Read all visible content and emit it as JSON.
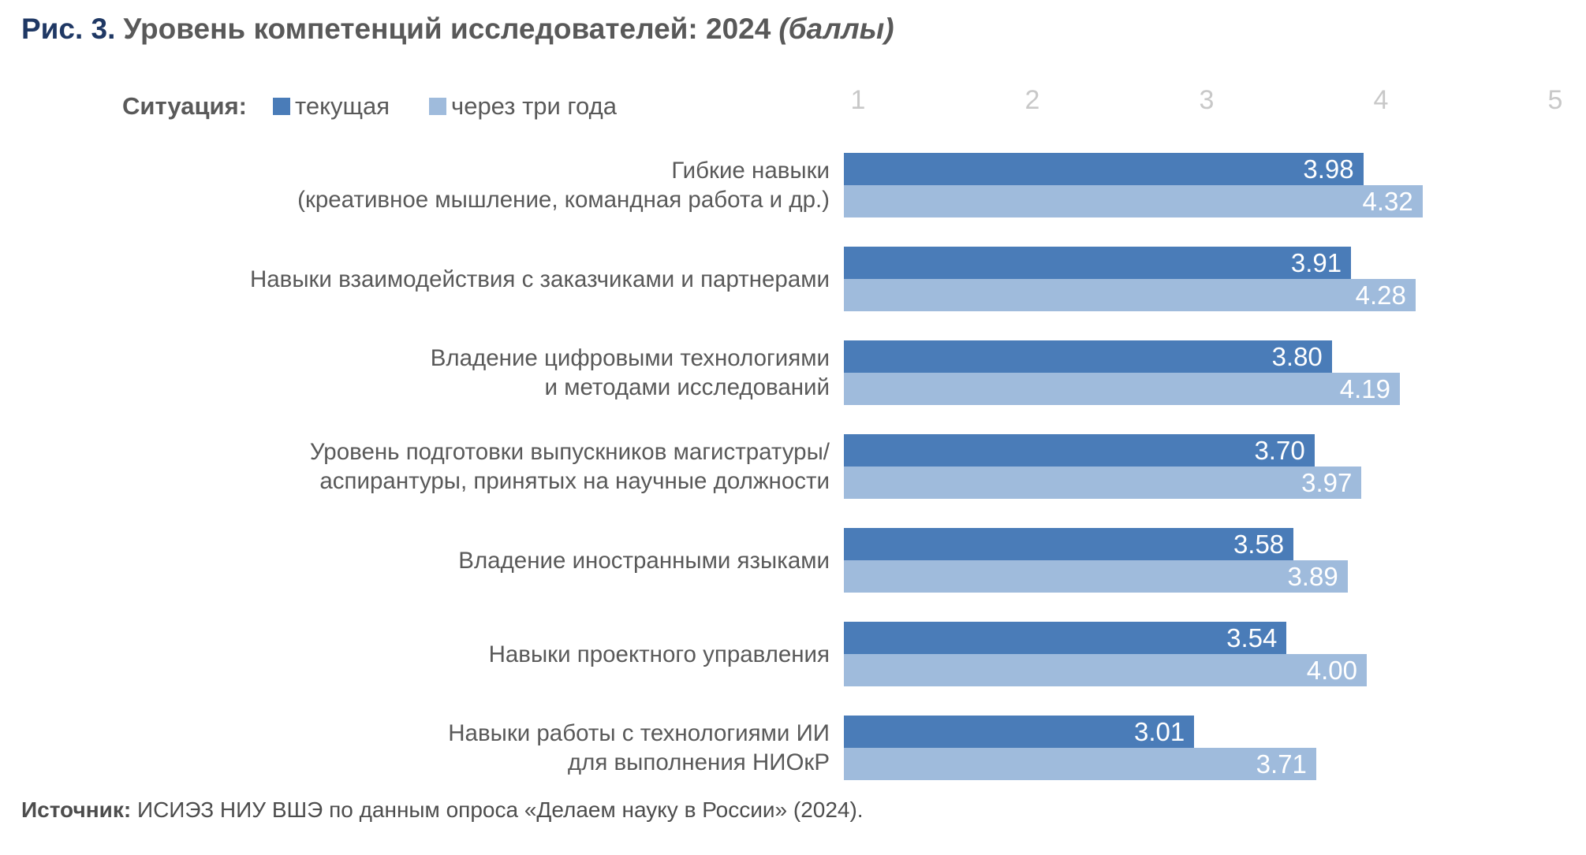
{
  "title": {
    "prefix": "Рис. 3.",
    "main": "Уровень компетенций исследователей: 2024",
    "unit": "(баллы)"
  },
  "legend": {
    "label": "Ситуация:",
    "current_label": "текущая",
    "future_label": "через три года"
  },
  "colors": {
    "current": "#4A7CB8",
    "future": "#9FBBDC",
    "title_accent": "#1F3864",
    "text_gray": "#595959",
    "tick_gray": "#C8C8C8"
  },
  "axis": {
    "ticks": [
      "1",
      "2",
      "3",
      "4",
      "5"
    ],
    "min": 1,
    "max": 5
  },
  "chart_data": {
    "type": "bar",
    "orientation": "horizontal",
    "title": "Рис. 3. Уровень компетенций исследователей: 2024 (баллы)",
    "xlabel": "баллы",
    "ylabel": "",
    "xlim": [
      1,
      5
    ],
    "grid": false,
    "legend_position": "top-left",
    "categories": [
      "Гибкие навыки (креативное мышление, командная работа и др.)",
      "Навыки взаимодействия с заказчиками и партнерами",
      "Владение цифровыми технологиями и методами исследований",
      "Уровень подготовки выпускников магистратуры/ аспирантуры, принятых на научные должности",
      "Владение иностранными языками",
      "Навыки проектного управления",
      "Навыки работы с технологиями ИИ для выполнения НИОкР"
    ],
    "series": [
      {
        "name": "текущая",
        "values": [
          3.98,
          3.91,
          3.8,
          3.7,
          3.58,
          3.54,
          3.01
        ]
      },
      {
        "name": "через три года",
        "values": [
          4.32,
          4.28,
          4.19,
          3.97,
          3.89,
          4.0,
          3.71
        ]
      }
    ]
  },
  "rows": [
    {
      "label1": "Гибкие навыки",
      "label2": "(креативное мышление, командная работа и др.)",
      "current": "3.98",
      "future": "4.32"
    },
    {
      "label1": "Навыки взаимодействия с заказчиками и партнерами",
      "label2": "",
      "current": "3.91",
      "future": "4.28"
    },
    {
      "label1": "Владение цифровыми технологиями",
      "label2": "и методами исследований",
      "current": "3.80",
      "future": "4.19"
    },
    {
      "label1": "Уровень подготовки выпускников магистратуры/",
      "label2": "аспирантуры, принятых на научные должности",
      "current": "3.70",
      "future": "3.97"
    },
    {
      "label1": "Владение иностранными языками",
      "label2": "",
      "current": "3.58",
      "future": "3.89"
    },
    {
      "label1": "Навыки проектного управления",
      "label2": "",
      "current": "3.54",
      "future": "4.00"
    },
    {
      "label1": "Навыки работы с технологиями ИИ",
      "label2": "для выполнения НИОкР",
      "current": "3.01",
      "future": "3.71"
    }
  ],
  "source": {
    "label": "Источник:",
    "text": " ИСИЭЗ НИУ ВШЭ по данным опроса «Делаем науку в России» (2024)."
  }
}
